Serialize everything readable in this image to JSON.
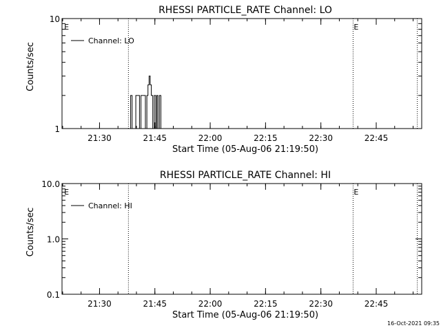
{
  "footer": {
    "timestamp": "16-Oct-2021 09:35"
  },
  "chart_data": [
    {
      "type": "line",
      "title": "RHESSI PARTICLE_RATE Channel: LO",
      "xlabel": "Start Time (05-Aug-06 21:19:50)",
      "ylabel": "Counts/sec",
      "x_ticks": [
        "21:30",
        "21:45",
        "22:00",
        "22:15",
        "22:30",
        "22:45"
      ],
      "x_tick_minutes": [
        10.17,
        25.17,
        40.17,
        55.17,
        70.17,
        85.17
      ],
      "xlim_minutes": [
        0,
        97.5
      ],
      "y_scale": "log",
      "ylim": [
        1,
        10
      ],
      "y_ticks": [
        "1",
        "10"
      ],
      "y_tick_values": [
        1,
        10
      ],
      "markers": [
        {
          "label": "E",
          "minute": 0.4,
          "line": false
        },
        {
          "label": "",
          "minute": 18.0,
          "line": true
        },
        {
          "label": "E",
          "minute": 78.9,
          "line": true
        },
        {
          "label": "",
          "minute": 96.3,
          "line": true
        }
      ],
      "legend": {
        "position": "top-left",
        "entries": [
          "Channel: LO"
        ]
      },
      "series": [
        {
          "name": "Channel: LO",
          "x": [
            18.2,
            18.6,
            19.0,
            19.5,
            20.0,
            20.6,
            21.0,
            21.4,
            21.8,
            22.2,
            22.6,
            23.0,
            23.3,
            23.6,
            23.9,
            24.2,
            24.6,
            25.0,
            25.4,
            25.7,
            26.0,
            26.4,
            26.8
          ],
          "values": [
            1,
            2,
            1,
            1,
            2,
            2,
            1,
            2,
            2,
            2,
            1,
            2,
            2.5,
            3,
            2.5,
            2,
            1,
            2,
            1,
            2,
            1,
            2,
            1
          ]
        }
      ]
    },
    {
      "type": "line",
      "title": "RHESSI PARTICLE_RATE Channel: HI",
      "xlabel": "Start Time (05-Aug-06 21:19:50)",
      "ylabel": "Counts/sec",
      "x_ticks": [
        "21:30",
        "21:45",
        "22:00",
        "22:15",
        "22:30",
        "22:45"
      ],
      "x_tick_minutes": [
        10.17,
        25.17,
        40.17,
        55.17,
        70.17,
        85.17
      ],
      "xlim_minutes": [
        0,
        97.5
      ],
      "y_scale": "log",
      "ylim": [
        0.1,
        10
      ],
      "y_ticks": [
        "0.1",
        "1.0",
        "10.0"
      ],
      "y_tick_values": [
        0.1,
        1,
        10
      ],
      "markers": [
        {
          "label": "E",
          "minute": 0.4,
          "line": false
        },
        {
          "label": "",
          "minute": 18.0,
          "line": true
        },
        {
          "label": "E",
          "minute": 78.9,
          "line": true
        },
        {
          "label": "",
          "minute": 96.3,
          "line": true
        }
      ],
      "legend": {
        "position": "top-left",
        "entries": [
          "Channel: HI"
        ]
      },
      "series": [
        {
          "name": "Channel: HI",
          "x": [],
          "values": []
        }
      ]
    }
  ]
}
